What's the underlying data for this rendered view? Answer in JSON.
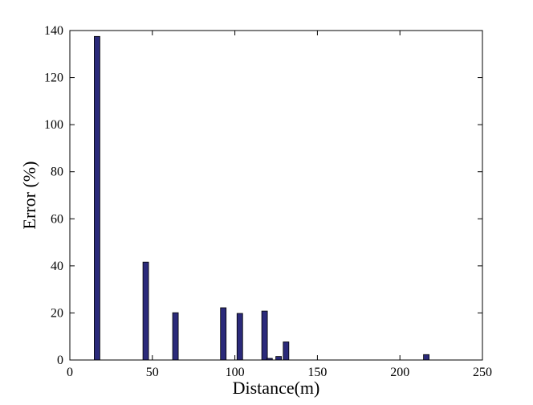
{
  "chart_data": {
    "type": "bar",
    "x_label": "Distance(m)",
    "y_label": "Error (%)",
    "x": [
      16.5,
      46,
      64,
      93,
      103,
      118,
      121,
      126.5,
      131,
      216
    ],
    "values": [
      137.5,
      41.6,
      20.1,
      22.2,
      19.8,
      20.8,
      0.7,
      1.5,
      7.7,
      2.3
    ],
    "color": "#2b2a7a",
    "xlim": [
      0,
      250
    ],
    "xticks": [
      0,
      50,
      100,
      150,
      200,
      250
    ],
    "ylim": [
      0,
      140
    ],
    "yticks": [
      0,
      20,
      40,
      60,
      80,
      100,
      120,
      140
    ]
  }
}
